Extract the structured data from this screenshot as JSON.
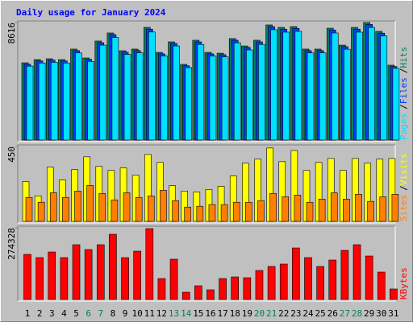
{
  "chart_data": [
    {
      "type": "bar",
      "title": "Daily usage for January 2024",
      "categories": [
        "1",
        "2",
        "3",
        "4",
        "5",
        "6",
        "7",
        "8",
        "9",
        "10",
        "11",
        "12",
        "13",
        "14",
        "15",
        "16",
        "17",
        "18",
        "19",
        "20",
        "21",
        "22",
        "23",
        "24",
        "25",
        "26",
        "27",
        "28",
        "29",
        "30",
        "31"
      ],
      "category_colors": [
        "#000000",
        "#000000",
        "#000000",
        "#000000",
        "#000000",
        "#00805c",
        "#00805c",
        "#000000",
        "#000000",
        "#000000",
        "#000000",
        "#000000",
        "#00805c",
        "#00805c",
        "#000000",
        "#000000",
        "#000000",
        "#000000",
        "#000000",
        "#00805c",
        "#00805c",
        "#000000",
        "#000000",
        "#000000",
        "#000000",
        "#000000",
        "#00805c",
        "#00805c",
        "#000000",
        "#000000",
        "#000000"
      ],
      "separator": "/",
      "ylim": [
        0,
        8616
      ],
      "yticks": [
        8616
      ],
      "series": [
        {
          "name": "Hits",
          "color": "#00805c",
          "values": [
            5665,
            5900,
            5960,
            5900,
            6670,
            6020,
            7260,
            7850,
            6550,
            6670,
            8260,
            6430,
            7200,
            5550,
            7320,
            6430,
            6370,
            7440,
            6900,
            7320,
            8440,
            8260,
            8320,
            6670,
            6670,
            8200,
            6960,
            8260,
            8616,
            7970,
            5490
          ]
        },
        {
          "name": "Files",
          "color": "#0040ff",
          "values": [
            5560,
            5800,
            5860,
            5800,
            6560,
            5920,
            7140,
            7730,
            6440,
            6560,
            8130,
            6320,
            7080,
            5450,
            7200,
            6320,
            6260,
            7320,
            6790,
            7200,
            8310,
            8130,
            8190,
            6560,
            6560,
            8070,
            6850,
            8130,
            8480,
            7840,
            5390
          ]
        },
        {
          "name": "Pages",
          "color": "#00e0ff",
          "values": [
            5420,
            5650,
            5700,
            5650,
            6390,
            5760,
            6960,
            7520,
            6280,
            6400,
            7920,
            6160,
            6900,
            5310,
            7010,
            6160,
            6100,
            7130,
            6610,
            7010,
            8090,
            7910,
            7970,
            6390,
            6390,
            7850,
            6660,
            7910,
            8260,
            7630,
            5260
          ]
        }
      ]
    },
    {
      "type": "bar",
      "ylim": [
        0,
        450
      ],
      "yticks": [
        450
      ],
      "series": [
        {
          "name": "Visits",
          "color": "#ffff00",
          "values": [
            240,
            153,
            326,
            249,
            311,
            388,
            330,
            306,
            321,
            278,
            402,
            354,
            215,
            182,
            177,
            192,
            211,
            273,
            350,
            374,
            441,
            359,
            426,
            306,
            354,
            378,
            306,
            378,
            350,
            374,
            378
          ]
        },
        {
          "name": "Sites",
          "color": "#ff8000",
          "values": [
            144,
            115,
            172,
            144,
            182,
            216,
            168,
            129,
            172,
            144,
            153,
            187,
            125,
            86,
            91,
            101,
            101,
            115,
            115,
            125,
            168,
            148,
            158,
            115,
            134,
            172,
            134,
            163,
            120,
            148,
            163
          ]
        }
      ]
    },
    {
      "type": "bar",
      "ylim": [
        0,
        274328
      ],
      "yticks": [
        274328
      ],
      "series": [
        {
          "name": "KBytes",
          "color": "#ff0000",
          "values": [
            172600,
            160300,
            181800,
            160300,
            209600,
            191100,
            209600,
            249600,
            160300,
            184900,
            271200,
            80100,
            154100,
            27700,
            52400,
            37000,
            80100,
            86300,
            83200,
            111000,
            126400,
            135600,
            197200,
            160300,
            126400,
            151000,
            188000,
            209600,
            166400,
            104800,
            40100
          ]
        }
      ]
    }
  ]
}
